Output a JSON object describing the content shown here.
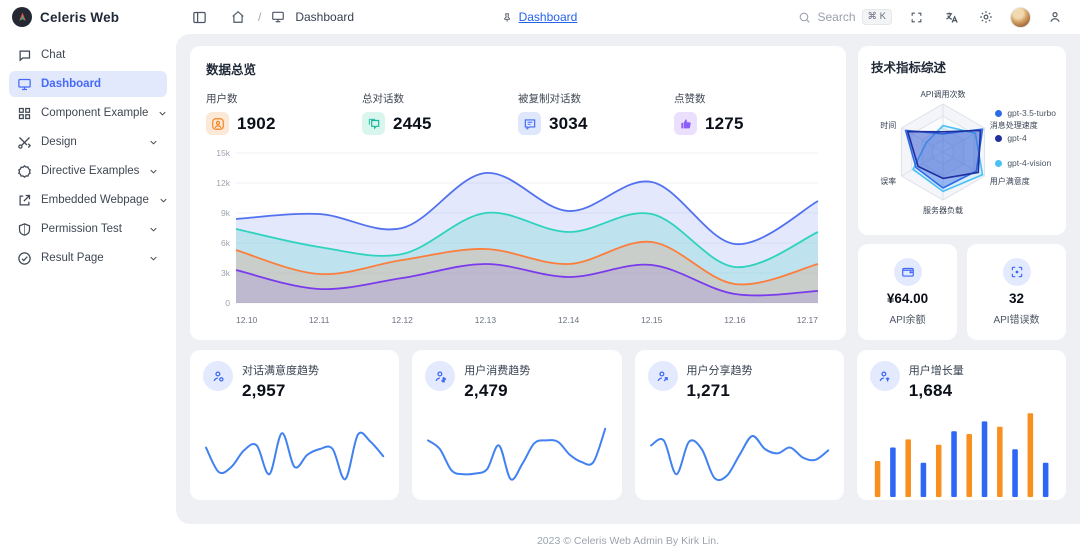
{
  "app": {
    "title": "Celeris Web",
    "footer": "2023 © Celeris Web Admin By Kirk Lin."
  },
  "header": {
    "breadcrumb": {
      "separator": "/",
      "page": "Dashboard"
    },
    "tab": {
      "label": "Dashboard"
    },
    "search": {
      "placeholder": "Search",
      "shortcut": "⌘ K"
    }
  },
  "sidebar": {
    "items": [
      {
        "label": "Chat",
        "icon": "chat-icon"
      },
      {
        "label": "Dashboard",
        "icon": "dashboard-icon",
        "active": true
      },
      {
        "label": "Component Example",
        "icon": "components-icon",
        "expandable": true
      },
      {
        "label": "Design",
        "icon": "design-tools-icon",
        "expandable": true
      },
      {
        "label": "Directive Examples",
        "icon": "badge-icon",
        "expandable": true
      },
      {
        "label": "Embedded Webpage",
        "icon": "external-link-icon",
        "expandable": true
      },
      {
        "label": "Permission Test",
        "icon": "shield-icon",
        "expandable": true
      },
      {
        "label": "Result Page",
        "icon": "check-circle-icon",
        "expandable": true
      }
    ]
  },
  "overview": {
    "title": "数据总览",
    "stats": [
      {
        "label": "用户数",
        "value": "1902",
        "icon": "user-circle-icon",
        "color": "#f97316",
        "bg": "#fcе8d7"
      },
      {
        "label": "总对话数",
        "value": "2445",
        "icon": "chat-lines-icon",
        "color": "#14b8a6",
        "bg": "#d8f6ee"
      },
      {
        "label": "被复制对话数",
        "value": "3034",
        "icon": "chat-square-icon",
        "color": "#4569f8",
        "bg": "#dfe7fd"
      },
      {
        "label": "点赞数",
        "value": "1275",
        "icon": "thumbs-up-icon",
        "color": "#8b5cf6",
        "bg": "#eadffc"
      }
    ]
  },
  "tech_card": {
    "title": "技术指标综述",
    "legend": [
      {
        "label": "gpt-3.5-turbo",
        "color": "#2e6be6"
      },
      {
        "label": "gpt-4",
        "color": "#202f9e"
      },
      {
        "label": "gpt-4-vision",
        "color": "#49c0f8"
      }
    ]
  },
  "mini_cards": [
    {
      "value": "¥64.00",
      "label": "API余额",
      "icon": "wallet-icon"
    },
    {
      "value": "32",
      "label": "API错误数",
      "icon": "scan-icon"
    }
  ],
  "trend_cards": [
    {
      "title": "对话满意度趋势",
      "value": "2,957",
      "icon": "user-satisfaction-icon"
    },
    {
      "title": "用户消费趋势",
      "value": "2,479",
      "icon": "user-spend-icon"
    },
    {
      "title": "用户分享趋势",
      "value": "1,271",
      "icon": "user-share-icon"
    },
    {
      "title": "用户增长量",
      "value": "1,684",
      "icon": "user-growth-icon"
    }
  ],
  "chart_data": [
    {
      "id": "overview-area",
      "type": "area",
      "title": "数据总览",
      "categories": [
        "12.10",
        "12.11",
        "12.12",
        "12.13",
        "12.14",
        "12.15",
        "12.16",
        "12.17"
      ],
      "ylim": [
        0,
        15000
      ],
      "yticks": [
        "0",
        "3k",
        "6k",
        "9k",
        "12k",
        "15k"
      ],
      "grid": true,
      "series": [
        {
          "name": "series-blue",
          "color": "#5271ef",
          "fill": "rgba(82,113,239,0.16)",
          "values": [
            8400,
            8900,
            7500,
            13000,
            9200,
            12100,
            5900,
            10200
          ]
        },
        {
          "name": "series-teal",
          "color": "#2fd3bd",
          "fill": "rgba(47,211,189,0.20)",
          "values": [
            7400,
            5600,
            4900,
            9000,
            7100,
            8900,
            3600,
            7100
          ]
        },
        {
          "name": "series-orange",
          "color": "#fb7e3c",
          "fill": "rgba(251,126,60,0.20)",
          "values": [
            5300,
            2900,
            4300,
            5400,
            3900,
            6100,
            1900,
            3900
          ]
        },
        {
          "name": "series-purple",
          "color": "#7a3bec",
          "fill": "rgba(122,59,236,0.14)",
          "values": [
            3300,
            1400,
            2500,
            3900,
            2600,
            3800,
            900,
            1200
          ]
        }
      ]
    },
    {
      "id": "tech-radar",
      "type": "radar",
      "title": "技术指标综述",
      "indicators": [
        "API调用次数",
        "消息处理速度",
        "用户满意度",
        "服务器负载",
        "误率",
        "时间"
      ],
      "levels": 4,
      "series": [
        {
          "name": "gpt-4-vision",
          "color": "#49c0f8",
          "fill": "rgba(73,192,248,0.12)",
          "values": [
            0.55,
            0.78,
            0.95,
            0.82,
            0.72,
            0.4
          ]
        },
        {
          "name": "gpt-3.5-turbo",
          "color": "#2e6be6",
          "fill": "rgba(62,110,232,0.48)",
          "values": [
            0.38,
            0.95,
            0.8,
            0.75,
            0.65,
            0.9
          ]
        },
        {
          "name": "gpt-4",
          "color": "#202f9e",
          "fill": "rgba(32,47,158,0.15)",
          "values": [
            0.42,
            0.9,
            0.85,
            0.55,
            0.6,
            0.85
          ]
        }
      ]
    },
    {
      "id": "satisfaction-spark",
      "type": "line",
      "title": "对话满意度趋势",
      "color": "#4282f0",
      "values": [
        52,
        18,
        25,
        48,
        55,
        15,
        72,
        25,
        42,
        50,
        50,
        8,
        70,
        60,
        40
      ]
    },
    {
      "id": "spend-spark",
      "type": "line",
      "title": "用户消费趋势",
      "color": "#4282f0",
      "values": [
        62,
        50,
        20,
        15,
        16,
        22,
        55,
        8,
        30,
        58,
        62,
        60,
        42,
        32,
        32,
        78
      ]
    },
    {
      "id": "share-spark",
      "type": "line",
      "title": "用户分享趋势",
      "color": "#4282f0",
      "values": [
        55,
        62,
        15,
        60,
        50,
        10,
        13,
        42,
        68,
        50,
        44,
        52,
        38,
        35,
        48
      ]
    },
    {
      "id": "growth-bars",
      "type": "bar",
      "title": "用户增长量",
      "colors": [
        "#f7901e",
        "#2e66f6"
      ],
      "values": [
        40,
        55,
        64,
        38,
        58,
        73,
        70,
        84,
        78,
        53,
        93,
        38
      ]
    }
  ]
}
